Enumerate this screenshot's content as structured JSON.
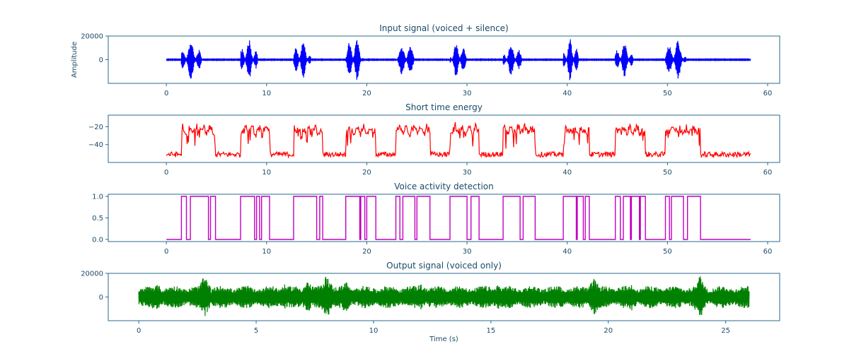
{
  "chart_data": [
    {
      "type": "line",
      "title": "Input signal (voiced + silence)",
      "xlabel": "",
      "ylabel": "Amplitude",
      "color": "#0000ff",
      "xlim": [
        -5.8,
        61.2
      ],
      "ylim": [
        -20000,
        20000
      ],
      "xticks": [
        0,
        10,
        20,
        30,
        40,
        50,
        60
      ],
      "yticks": [
        0,
        20000
      ],
      "x_range": [
        0,
        58.3
      ],
      "bursts": [
        {
          "start": 1.5,
          "end": 4.9,
          "amp": 17000
        },
        {
          "start": 7.4,
          "end": 10.3,
          "amp": 18000
        },
        {
          "start": 12.7,
          "end": 15.6,
          "amp": 16000
        },
        {
          "start": 17.9,
          "end": 20.9,
          "amp": 19000
        },
        {
          "start": 22.9,
          "end": 26.3,
          "amp": 14000
        },
        {
          "start": 28.3,
          "end": 31.2,
          "amp": 15000
        },
        {
          "start": 33.6,
          "end": 36.8,
          "amp": 14000
        },
        {
          "start": 39.6,
          "end": 42.2,
          "amp": 18000
        },
        {
          "start": 44.8,
          "end": 47.8,
          "amp": 15000
        },
        {
          "start": 49.8,
          "end": 53.3,
          "amp": 17000
        }
      ]
    },
    {
      "type": "line",
      "title": "Short time energy",
      "xlabel": "",
      "ylabel": "",
      "color": "#ff0000",
      "xlim": [
        -5.8,
        61.2
      ],
      "ylim": [
        -60,
        -7
      ],
      "xticks": [
        0,
        10,
        20,
        30,
        40,
        50,
        60
      ],
      "yticks": [
        -20,
        -40
      ],
      "x_range": [
        0,
        58.3
      ],
      "high_level": -20,
      "low_level": -52
    },
    {
      "type": "line",
      "title": "Voice activity detection",
      "xlabel": "",
      "ylabel": "",
      "color": "#c000c0",
      "xlim": [
        -5.8,
        61.2
      ],
      "ylim": [
        -0.05,
        1.05
      ],
      "xticks": [
        0,
        10,
        20,
        30,
        40,
        50,
        60
      ],
      "yticks": [
        0.0,
        0.5,
        1.0
      ],
      "ytick_labels": [
        "0.0",
        "0.5",
        "1.0"
      ],
      "x_range": [
        0,
        58.3
      ],
      "on_intervals": [
        [
          1.5,
          2.0
        ],
        [
          2.4,
          4.2
        ],
        [
          4.4,
          4.9
        ],
        [
          7.4,
          8.8
        ],
        [
          9.0,
          9.3
        ],
        [
          9.5,
          10.3
        ],
        [
          12.7,
          15.0
        ],
        [
          15.3,
          15.6
        ],
        [
          17.9,
          19.3
        ],
        [
          19.4,
          19.8
        ],
        [
          20.0,
          20.9
        ],
        [
          22.9,
          23.3
        ],
        [
          23.6,
          24.8
        ],
        [
          25.0,
          26.3
        ],
        [
          28.3,
          30.0
        ],
        [
          30.4,
          31.2
        ],
        [
          33.6,
          35.3
        ],
        [
          35.6,
          36.8
        ],
        [
          39.6,
          40.9
        ],
        [
          41.0,
          41.6
        ],
        [
          41.8,
          42.2
        ],
        [
          44.8,
          45.3
        ],
        [
          45.6,
          46.3
        ],
        [
          46.4,
          47.2
        ],
        [
          47.3,
          47.8
        ],
        [
          49.8,
          50.2
        ],
        [
          50.4,
          51.6
        ],
        [
          52.0,
          53.3
        ]
      ]
    },
    {
      "type": "line",
      "title": "Output signal (voiced only)",
      "xlabel": "Time (s)",
      "ylabel": "",
      "color": "#008000",
      "xlim": [
        -1.3,
        27.3
      ],
      "ylim": [
        -20000,
        20000
      ],
      "xticks": [
        0,
        5,
        10,
        15,
        20,
        25
      ],
      "yticks": [
        0,
        20000
      ],
      "x_range": [
        0,
        26.0
      ],
      "peaks": [
        {
          "x": 0.8,
          "amp": 11000
        },
        {
          "x": 2.8,
          "amp": 18000
        },
        {
          "x": 6.2,
          "amp": 11000
        },
        {
          "x": 7.2,
          "amp": 14000
        },
        {
          "x": 8.0,
          "amp": 19000
        },
        {
          "x": 8.8,
          "amp": 14000
        },
        {
          "x": 12.0,
          "amp": 12000
        },
        {
          "x": 15.3,
          "amp": 11000
        },
        {
          "x": 19.4,
          "amp": 16000
        },
        {
          "x": 21.0,
          "amp": 12000
        },
        {
          "x": 23.9,
          "amp": 19000
        }
      ]
    }
  ]
}
